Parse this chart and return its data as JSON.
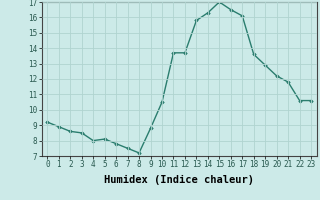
{
  "x": [
    0,
    1,
    2,
    3,
    4,
    5,
    6,
    7,
    8,
    9,
    10,
    11,
    12,
    13,
    14,
    15,
    16,
    17,
    18,
    19,
    20,
    21,
    22,
    23
  ],
  "y": [
    9.2,
    8.9,
    8.6,
    8.5,
    8.0,
    8.1,
    7.8,
    7.5,
    7.2,
    8.8,
    10.5,
    13.7,
    13.7,
    15.8,
    16.3,
    17.0,
    16.5,
    16.1,
    13.6,
    12.9,
    12.2,
    11.8,
    10.6,
    10.6
  ],
  "xlabel": "Humidex (Indice chaleur)",
  "ylim": [
    7,
    17
  ],
  "xlim": [
    -0.5,
    23.5
  ],
  "yticks": [
    7,
    8,
    9,
    10,
    11,
    12,
    13,
    14,
    15,
    16,
    17
  ],
  "xticks": [
    0,
    1,
    2,
    3,
    4,
    5,
    6,
    7,
    8,
    9,
    10,
    11,
    12,
    13,
    14,
    15,
    16,
    17,
    18,
    19,
    20,
    21,
    22,
    23
  ],
  "line_color": "#2a7d6e",
  "marker": "D",
  "marker_size": 1.8,
  "line_width": 1.0,
  "bg_color": "#cceae8",
  "grid_color": "#b0d4d0",
  "tick_fontsize": 5.5,
  "xlabel_fontsize": 7.5,
  "xlabel_fontweight": "bold",
  "xlabel_fontfamily": "monospace"
}
